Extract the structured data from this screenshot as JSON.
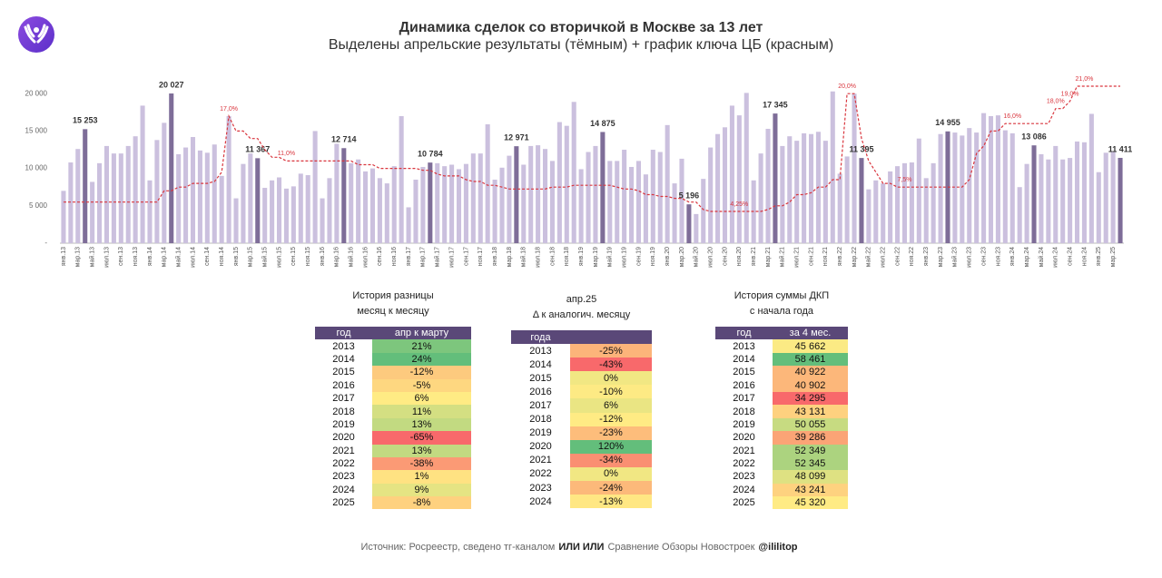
{
  "chart_data": {
    "type": "bar",
    "title": "Динамика сделок со вторичкой в Москве за 13 лет",
    "subtitle": "Выделены апрельские результаты (тёмным) + график ключа ЦБ (красным)",
    "categories": [
      "янв.13",
      null,
      "мар.13",
      null,
      "май.13",
      null,
      "июл.13",
      null,
      "сен.13",
      null,
      "ноя.13",
      null,
      "янв.14",
      null,
      "мар.14",
      null,
      "май.14",
      null,
      "июл.14",
      null,
      "сен.14",
      null,
      "ноя.14",
      null,
      "янв.15",
      null,
      "мар.15",
      null,
      "май.15",
      null,
      "июл.15",
      null,
      "сен.15",
      null,
      "ноя.15",
      null,
      "янв.16",
      null,
      "мар.16",
      null,
      "май.16",
      null,
      "июл.16",
      null,
      "сен.16",
      null,
      "ноя.16",
      null,
      "янв.17",
      null,
      "мар.17",
      null,
      "май.17",
      null,
      "июл.17",
      null,
      "сен.17",
      null,
      "ноя.17",
      null,
      "янв.18",
      null,
      "мар.18",
      null,
      "май.18",
      null,
      "июл.18",
      null,
      "сен.18",
      null,
      "ноя.18",
      null,
      "янв.19",
      null,
      "мар.19",
      null,
      "май.19",
      null,
      "июл.19",
      null,
      "сен.19",
      null,
      "ноя.19",
      null,
      "янв.20",
      null,
      "мар.20",
      null,
      "май.20",
      null,
      "июл.20",
      null,
      "сен.20",
      null,
      "ноя.20",
      null,
      "янв.21",
      null,
      "мар.21",
      null,
      "май.21",
      null,
      "июл.21",
      null,
      "сен.21",
      null,
      "ноя.21",
      null,
      "янв.22",
      null,
      "мар.22",
      null,
      "май.22",
      null,
      "июл.22",
      null,
      "сен.22",
      null,
      "ноя.22",
      null,
      "янв.23",
      null,
      "мар.23",
      null,
      "май.23",
      null,
      "июл.23",
      null,
      "сен.23",
      null,
      "ноя.23",
      null,
      "янв.24",
      null,
      "мар.24",
      null,
      "май.24",
      null,
      "июл.24",
      null,
      "сен.24",
      null,
      "ноя.24",
      null,
      "янв.25",
      null,
      "мар.25",
      null
    ],
    "series": [
      {
        "type": "bar",
        "color": "#cbc0de",
        "highlight_color": "#7e6d98",
        "values": [
          7000,
          10800,
          12600,
          15253,
          8200,
          10700,
          13000,
          12000,
          12000,
          13000,
          14300,
          18400,
          8400,
          13800,
          16100,
          20027,
          11900,
          12800,
          14200,
          12400,
          12100,
          13200,
          9000,
          17000,
          6000,
          10600,
          12000,
          11367,
          7400,
          8400,
          8800,
          7300,
          7600,
          9300,
          9100,
          15000,
          6000,
          8700,
          13300,
          12714,
          10700,
          11200,
          9600,
          10000,
          8700,
          8000,
          10300,
          17000,
          4800,
          8500,
          10200,
          10784,
          10700,
          10300,
          10500,
          9900,
          10600,
          12000,
          12000,
          15900,
          8500,
          10100,
          11700,
          12971,
          10500,
          13000,
          13100,
          12600,
          11000,
          16200,
          15700,
          18900,
          9900,
          12200,
          13000,
          14875,
          11000,
          11000,
          12500,
          10200,
          11000,
          9200,
          12500,
          12200,
          15800,
          8000,
          11300,
          5196,
          3900,
          8600,
          12800,
          14600,
          15500,
          18400,
          17100,
          20100,
          8400,
          12000,
          15300,
          17345,
          13000,
          14300,
          13700,
          14700,
          14600,
          14900,
          13700,
          20300,
          9300,
          11600,
          20000,
          11395,
          7200,
          8400,
          8000,
          9600,
          10300,
          10700,
          10800,
          14000,
          8700,
          10700,
          14600,
          14955,
          14800,
          14400,
          15400,
          14800,
          17400,
          17000,
          17100,
          15100,
          14700,
          7500,
          10600,
          13086,
          11900,
          11200,
          13000,
          11200,
          11400,
          13600,
          13500,
          17300,
          9500,
          12100,
          12300,
          11411
        ],
        "value_labels": [
          null,
          null,
          null,
          "15 253",
          null,
          null,
          null,
          null,
          null,
          null,
          null,
          null,
          null,
          null,
          null,
          "20 027",
          null,
          null,
          null,
          null,
          null,
          null,
          null,
          null,
          null,
          null,
          null,
          "11 367",
          null,
          null,
          null,
          null,
          null,
          null,
          null,
          null,
          null,
          null,
          null,
          "12 714",
          null,
          null,
          null,
          null,
          null,
          null,
          null,
          null,
          null,
          null,
          null,
          "10 784",
          null,
          null,
          null,
          null,
          null,
          null,
          null,
          null,
          null,
          null,
          null,
          "12 971",
          null,
          null,
          null,
          null,
          null,
          null,
          null,
          null,
          null,
          null,
          null,
          "14 875",
          null,
          null,
          null,
          null,
          null,
          null,
          null,
          null,
          null,
          null,
          null,
          "5 196",
          null,
          null,
          null,
          null,
          null,
          null,
          null,
          null,
          null,
          null,
          null,
          "17 345",
          null,
          null,
          null,
          null,
          null,
          null,
          null,
          null,
          null,
          null,
          null,
          "11 395",
          null,
          null,
          null,
          null,
          null,
          null,
          null,
          null,
          null,
          null,
          null,
          "14 955",
          null,
          null,
          null,
          null,
          null,
          null,
          null,
          null,
          null,
          null,
          null,
          "13 086",
          null,
          null,
          null,
          null,
          null,
          null,
          null,
          null,
          null,
          null,
          null,
          "11 411"
        ]
      },
      {
        "type": "line",
        "axis": "y2",
        "color": "#d9363e",
        "dashed": true,
        "values": [
          5.5,
          5.5,
          5.5,
          5.5,
          5.5,
          5.5,
          5.5,
          5.5,
          5.5,
          5.5,
          5.5,
          5.5,
          5.5,
          5.5,
          7,
          7,
          7.5,
          7.5,
          8,
          8,
          8,
          8.25,
          9.5,
          17,
          15,
          15,
          14,
          14,
          12.5,
          11.5,
          11.5,
          11,
          11,
          11,
          11,
          11,
          11,
          11,
          11,
          11,
          11,
          10.5,
          10.5,
          10.5,
          10,
          10,
          10,
          10,
          10,
          10,
          9.75,
          9.75,
          9.25,
          9,
          9,
          9,
          8.5,
          8.25,
          8.25,
          7.75,
          7.75,
          7.5,
          7.25,
          7.25,
          7.25,
          7.25,
          7.25,
          7.25,
          7.5,
          7.5,
          7.5,
          7.75,
          7.75,
          7.75,
          7.75,
          7.75,
          7.75,
          7.5,
          7.25,
          7.25,
          7,
          6.5,
          6.5,
          6.25,
          6.25,
          6,
          6,
          5.5,
          5.5,
          4.5,
          4.25,
          4.25,
          4.25,
          4.25,
          4.25,
          4.25,
          4.25,
          4.25,
          4.5,
          5,
          5,
          5.5,
          6.5,
          6.5,
          6.75,
          7.5,
          7.5,
          8.5,
          8.5,
          20,
          20,
          14,
          11,
          9.5,
          8,
          8,
          7.5,
          7.5,
          7.5,
          7.5,
          7.5,
          7.5,
          7.5,
          7.5,
          7.5,
          7.5,
          8.5,
          12,
          13,
          15,
          15,
          16,
          16,
          16,
          16,
          16,
          16,
          16,
          18,
          18,
          19,
          21,
          21,
          21,
          21,
          21,
          21,
          21
        ],
        "value_labels": [
          null,
          null,
          null,
          null,
          null,
          null,
          null,
          null,
          null,
          null,
          null,
          null,
          null,
          null,
          null,
          null,
          null,
          null,
          null,
          null,
          null,
          null,
          null,
          "17,0%",
          null,
          null,
          null,
          null,
          null,
          null,
          null,
          "11,0%",
          null,
          null,
          null,
          null,
          null,
          null,
          null,
          null,
          null,
          null,
          null,
          null,
          null,
          null,
          null,
          null,
          null,
          null,
          null,
          null,
          null,
          null,
          null,
          null,
          null,
          null,
          null,
          null,
          null,
          null,
          null,
          null,
          null,
          null,
          null,
          null,
          null,
          null,
          null,
          null,
          null,
          null,
          null,
          null,
          null,
          null,
          null,
          null,
          null,
          null,
          null,
          null,
          null,
          null,
          null,
          null,
          null,
          null,
          null,
          null,
          null,
          null,
          "4,25%",
          null,
          null,
          null,
          null,
          null,
          null,
          null,
          null,
          null,
          null,
          null,
          null,
          null,
          null,
          "20,0%",
          null,
          null,
          null,
          null,
          null,
          null,
          null,
          "7,5%",
          null,
          null,
          null,
          null,
          null,
          null,
          null,
          null,
          null,
          null,
          null,
          null,
          null,
          null,
          "16,0%",
          null,
          null,
          null,
          null,
          null,
          "18,0%",
          null,
          "19,0%",
          null,
          "21,0%",
          null,
          null,
          null,
          null,
          null
        ]
      }
    ],
    "ylim": [
      0,
      21000
    ],
    "yticks": [
      {
        "value": 0,
        "label": "-"
      },
      {
        "value": 5000,
        "label": "5 000"
      },
      {
        "value": 10000,
        "label": "10 000"
      },
      {
        "value": 15000,
        "label": "15 000"
      },
      {
        "value": 20000,
        "label": "20 000"
      }
    ],
    "y2lim": [
      0,
      21
    ],
    "grid": false
  },
  "tables": [
    {
      "title": [
        "История разницы",
        "месяц к месяцу"
      ],
      "headers": [
        "год",
        "апр к марту"
      ],
      "rows": [
        [
          "2013",
          "21%"
        ],
        [
          "2014",
          "24%"
        ],
        [
          "2015",
          "-12%"
        ],
        [
          "2016",
          "-5%"
        ],
        [
          "2017",
          "6%"
        ],
        [
          "2018",
          "11%"
        ],
        [
          "2019",
          "13%"
        ],
        [
          "2020",
          "-65%"
        ],
        [
          "2021",
          "13%"
        ],
        [
          "2022",
          "-38%"
        ],
        [
          "2023",
          "1%"
        ],
        [
          "2024",
          "9%"
        ],
        [
          "2025",
          "-8%"
        ]
      ]
    },
    {
      "title": [
        "апр.25",
        "Δ к аналогич. месяцу"
      ],
      "headers": [
        "года"
      ],
      "rows": [
        [
          "2013",
          "-25%"
        ],
        [
          "2014",
          "-43%"
        ],
        [
          "2015",
          "0%"
        ],
        [
          "2016",
          "-10%"
        ],
        [
          "2017",
          "6%"
        ],
        [
          "2018",
          "-12%"
        ],
        [
          "2019",
          "-23%"
        ],
        [
          "2020",
          "120%"
        ],
        [
          "2021",
          "-34%"
        ],
        [
          "2022",
          "0%"
        ],
        [
          "2023",
          "-24%"
        ],
        [
          "2024",
          "-13%"
        ]
      ]
    },
    {
      "title": [
        "История суммы ДКП",
        "с начала года"
      ],
      "headers": [
        "год",
        "за 4 мес."
      ],
      "rows": [
        [
          "2013",
          "45 662"
        ],
        [
          "2014",
          "58 461"
        ],
        [
          "2015",
          "40 922"
        ],
        [
          "2016",
          "40 902"
        ],
        [
          "2017",
          "34 295"
        ],
        [
          "2018",
          "43 131"
        ],
        [
          "2019",
          "50 055"
        ],
        [
          "2020",
          "39 286"
        ],
        [
          "2021",
          "52 349"
        ],
        [
          "2022",
          "52 345"
        ],
        [
          "2023",
          "48 099"
        ],
        [
          "2024",
          "43 241"
        ],
        [
          "2025",
          "45 320"
        ]
      ]
    }
  ],
  "footer": [
    "Источник: Росреестр, сведено тг-каналом",
    "ИЛИ ИЛИ",
    "Сравнение Обзоры Новостроек",
    "@ililitop"
  ]
}
